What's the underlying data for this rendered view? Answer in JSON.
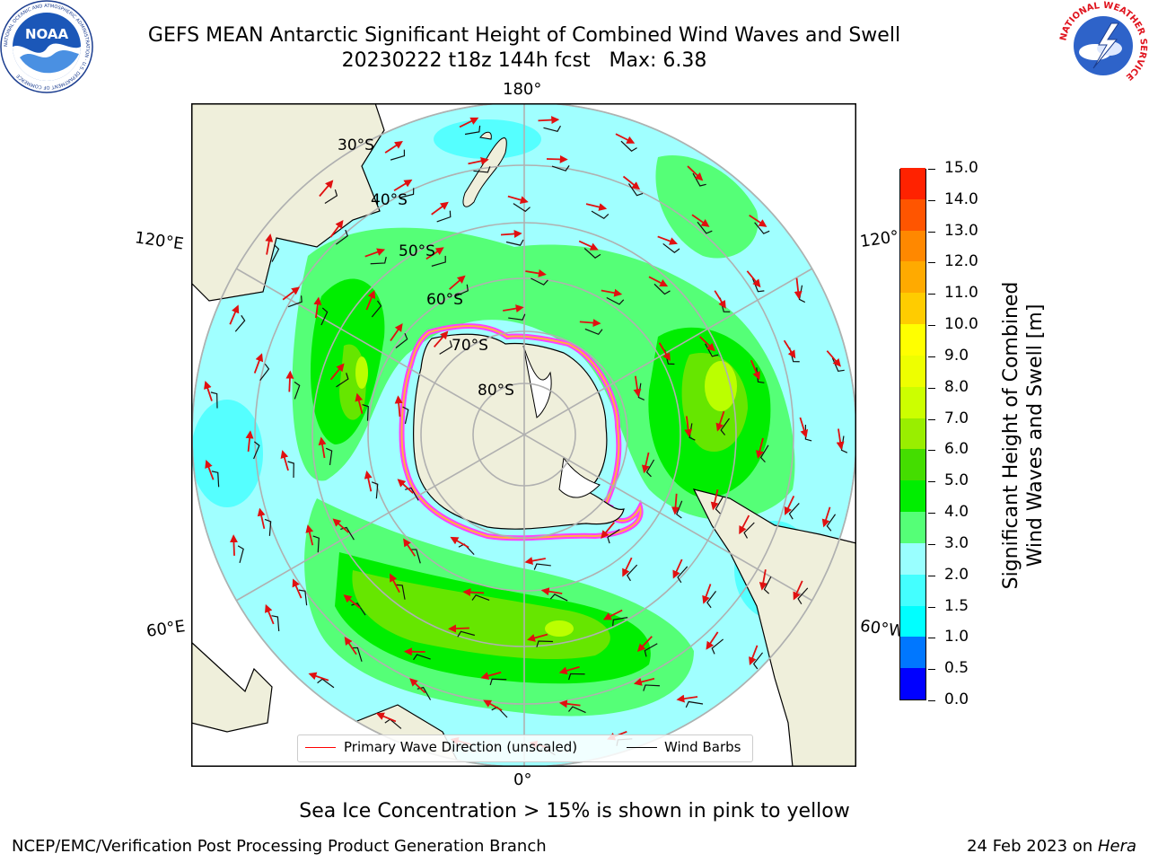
{
  "header": {
    "title_line1": "GEFS MEAN Antarctic Significant Height of Combined Wind Waves and Swell",
    "title_line2": "20230222 t18z 144h fcst   Max: 6.38"
  },
  "logos": {
    "left_text": "NOAA",
    "left_ring_text": "NATIONAL OCEANIC AND ATMOSPHERIC ADMINISTRATION · U.S. DEPARTMENT OF COMMERCE",
    "right_ring_text": "NATIONAL WEATHER SERVICE"
  },
  "map": {
    "lon_labels": {
      "top": "180°",
      "bottom": "0°",
      "upper_left": "120°E",
      "lower_left": "60°E",
      "upper_right": "120°",
      "lower_right": "60°W"
    },
    "lat_labels": [
      "30°S",
      "40°S",
      "50°S",
      "60°S",
      "70°S",
      "80°S"
    ]
  },
  "legend": {
    "wave_label": "Primary Wave Direction (unscaled)",
    "wind_label": "Wind Barbs",
    "wave_color": "#ff0000",
    "wind_color": "#000000"
  },
  "colorbar": {
    "title_line1": "Significant Height of Combined",
    "title_line2": "Wind Waves and Swell [m]",
    "ticks": [
      "0.0",
      "0.5",
      "1.0",
      "1.5",
      "2.0",
      "3.0",
      "4.0",
      "5.0",
      "6.0",
      "7.0",
      "8.0",
      "9.0",
      "10.0",
      "11.0",
      "12.0",
      "13.0",
      "14.0",
      "15.0"
    ],
    "colors": [
      "#0000ff",
      "#0077ff",
      "#00ffff",
      "#44ffff",
      "#99ffff",
      "#55ff77",
      "#00ee00",
      "#44dd00",
      "#99ee00",
      "#ccff00",
      "#eeff00",
      "#ffff00",
      "#ffcc00",
      "#ffaa00",
      "#ff8800",
      "#ff5500",
      "#ff2200"
    ]
  },
  "footer": {
    "note": "Sea Ice Concentration > 15% is shown in pink to yellow",
    "credit": "NCEP/EMC/Verification Post Processing Product Generation Branch",
    "run_date": "24 Feb 2023 on ",
    "host": "Hera"
  }
}
